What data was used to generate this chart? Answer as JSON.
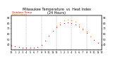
{
  "title_line1": "Milwaukee Temperature  vs  Heat Index",
  "title_line2": "(24 Hours)",
  "title_fontsize": 3.5,
  "bg_color": "#ffffff",
  "grid_color": "#aaaaaa",
  "x_labels": [
    "12",
    "1",
    "2",
    "3",
    "4",
    "5",
    "6",
    "7",
    "8",
    "9",
    "10",
    "11",
    "12",
    "1",
    "2",
    "3",
    "4",
    "5",
    "6",
    "7",
    "8",
    "9",
    "10",
    "11",
    "12"
  ],
  "ylim": [
    30,
    95
  ],
  "yticks": [
    40,
    50,
    60,
    70,
    80,
    90
  ],
  "ytick_labels": [
    "40",
    "50",
    "60",
    "70",
    "80",
    "90"
  ],
  "temp_color": "#cc0000",
  "heat_color": "#ff8800",
  "temp_values": [
    38,
    37,
    36,
    35,
    35,
    35,
    35,
    36,
    40,
    48,
    57,
    66,
    73,
    78,
    80,
    81,
    80,
    78,
    74,
    68,
    62,
    55,
    49,
    44,
    40
  ],
  "heat_values": [
    null,
    null,
    null,
    null,
    null,
    null,
    null,
    null,
    null,
    null,
    null,
    null,
    75,
    82,
    85,
    87,
    86,
    83,
    78,
    71,
    64,
    56,
    null,
    null,
    null
  ],
  "vgrid_positions": [
    4,
    8,
    12,
    16,
    20
  ],
  "marker_size": 0.9,
  "tick_fontsize": 2.5
}
